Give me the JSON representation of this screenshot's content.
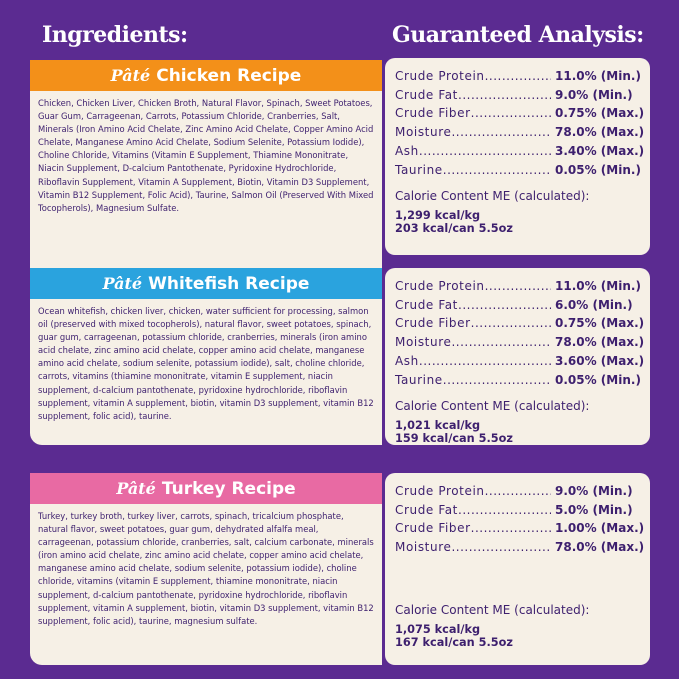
{
  "headings": {
    "ingredients": "Ingredients:",
    "analysis": "Guaranteed Analysis:"
  },
  "colors": {
    "background": "#5b2b91",
    "chicken": "#f39019",
    "whitefish": "#2aa3de",
    "turkey": "#e86aa3",
    "card": "#f6f0e6",
    "text": "#3d1f6e"
  },
  "recipes": [
    {
      "prefix": "Pâté",
      "name": "Chicken Recipe",
      "ingredients": "Chicken, Chicken Liver, Chicken Broth, Natural Flavor, Spinach, Sweet Potatoes, Guar Gum, Carrageenan, Carrots, Potassium Chloride, Cranberries, Salt, Minerals (Iron Amino Acid Chelate, Zinc Amino Acid Chelate, Copper Amino Acid Chelate, Manganese Amino Acid Chelate, Sodium Selenite, Potassium Iodide), Choline Chloride, Vitamins (Vitamin E Supplement, Thiamine Mononitrate, Niacin Supplement, D-calcium Pantothenate, Pyridoxine Hydrochloride, Riboflavin Supplement, Vitamin A Supplement, Biotin, Vitamin D3 Supplement, Vitamin B12 Supplement, Folic Acid), Taurine, Salmon Oil (Preserved With Mixed Tocopherols), Magnesium Sulfate.",
      "analysis": [
        {
          "label": "Crude Protein",
          "value": "11.0% (Min.)"
        },
        {
          "label": "Crude Fat",
          "value": "9.0% (Min.)"
        },
        {
          "label": "Crude Fiber",
          "value": "0.75% (Max.)"
        },
        {
          "label": "Moisture",
          "value": "78.0% (Max.)"
        },
        {
          "label": "Ash",
          "value": "3.40% (Max.)"
        },
        {
          "label": "Taurine",
          "value": "0.05% (Min.)"
        }
      ],
      "calorie_label": "Calorie Content ME (calculated):",
      "kcal_kg": "1,299 kcal/kg",
      "kcal_can": "203 kcal/can 5.5oz"
    },
    {
      "prefix": "Pâté",
      "name": "Whitefish Recipe",
      "ingredients": "Ocean whitefish, chicken liver, chicken, water sufficient for processing, salmon oil (preserved with mixed tocopherols), natural flavor, sweet potatoes, spinach, guar gum, carrageenan, potassium chloride, cranberries, minerals (iron amino acid chelate, zinc amino acid chelate, copper amino acid chelate, manganese amino acid chelate, sodium selenite, potassium iodide), salt, choline chloride, carrots, vitamins (thiamine mononitrate, vitamin E supplement, niacin supplement, d-calcium pantothenate, pyridoxine hydrochloride, riboflavin supplement, vitamin A supplement, biotin, vitamin D3 supplement, vitamin B12 supplement, folic acid), taurine.",
      "analysis": [
        {
          "label": "Crude Protein",
          "value": "11.0% (Min.)"
        },
        {
          "label": "Crude Fat",
          "value": "6.0% (Min.)"
        },
        {
          "label": "Crude Fiber",
          "value": "0.75% (Max.)"
        },
        {
          "label": "Moisture",
          "value": "78.0% (Max.)"
        },
        {
          "label": "Ash",
          "value": "3.60% (Max.)"
        },
        {
          "label": "Taurine",
          "value": "0.05% (Min.)"
        }
      ],
      "calorie_label": "Calorie Content ME (calculated):",
      "kcal_kg": "1,021 kcal/kg",
      "kcal_can": "159 kcal/can 5.5oz"
    },
    {
      "prefix": "Pâté",
      "name": "Turkey Recipe",
      "ingredients": "Turkey, turkey broth, turkey liver, carrots, spinach, tricalcium phosphate, natural flavor, sweet potatoes, guar gum, dehydrated alfalfa meal, carrageenan, potassium chloride, cranberries, salt, calcium carbonate, minerals (iron amino acid chelate, zinc amino acid chelate, copper amino acid chelate, manganese amino acid chelate, sodium selenite, potassium iodide), choline chloride, vitamins (vitamin E supplement, thiamine mononitrate, niacin supplement, d-calcium pantothenate, pyridoxine hydrochloride, riboflavin supplement, vitamin A supplement, biotin, vitamin D3 supplement, vitamin B12 supplement, folic acid), taurine, magnesium sulfate.",
      "analysis": [
        {
          "label": "Crude Protein",
          "value": "9.0% (Min.)"
        },
        {
          "label": "Crude Fat",
          "value": "5.0% (Min.)"
        },
        {
          "label": "Crude Fiber",
          "value": "1.00% (Max.)"
        },
        {
          "label": "Moisture",
          "value": "78.0% (Max.)"
        }
      ],
      "calorie_label": "Calorie Content ME (calculated):",
      "kcal_kg": "1,075 kcal/kg",
      "kcal_can": "167 kcal/can 5.5oz"
    }
  ]
}
